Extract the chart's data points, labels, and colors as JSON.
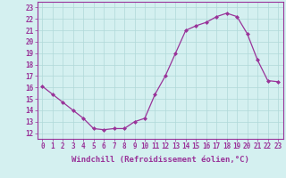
{
  "x": [
    0,
    1,
    2,
    3,
    4,
    5,
    6,
    7,
    8,
    9,
    10,
    11,
    12,
    13,
    14,
    15,
    16,
    17,
    18,
    19,
    20,
    21,
    22,
    23
  ],
  "y": [
    16.1,
    15.4,
    14.7,
    14.0,
    13.3,
    12.4,
    12.3,
    12.4,
    12.4,
    13.0,
    13.3,
    15.4,
    17.0,
    19.0,
    21.0,
    21.4,
    21.7,
    22.2,
    22.5,
    22.2,
    20.7,
    18.4,
    16.6,
    16.5
  ],
  "line_color": "#993399",
  "marker": "D",
  "marker_size": 2,
  "bg_color": "#d4f0f0",
  "grid_color": "#b0d8d8",
  "xlabel": "Windchill (Refroidissement éolien,°C)",
  "ylabel": "",
  "xlim": [
    -0.5,
    23.5
  ],
  "ylim": [
    11.5,
    23.5
  ],
  "yticks": [
    12,
    13,
    14,
    15,
    16,
    17,
    18,
    19,
    20,
    21,
    22,
    23
  ],
  "xticks": [
    0,
    1,
    2,
    3,
    4,
    5,
    6,
    7,
    8,
    9,
    10,
    11,
    12,
    13,
    14,
    15,
    16,
    17,
    18,
    19,
    20,
    21,
    22,
    23
  ],
  "xlabel_fontsize": 6.5,
  "tick_fontsize": 5.5,
  "axis_color": "#993399",
  "spine_color": "#993399",
  "grid_linewidth": 0.5
}
